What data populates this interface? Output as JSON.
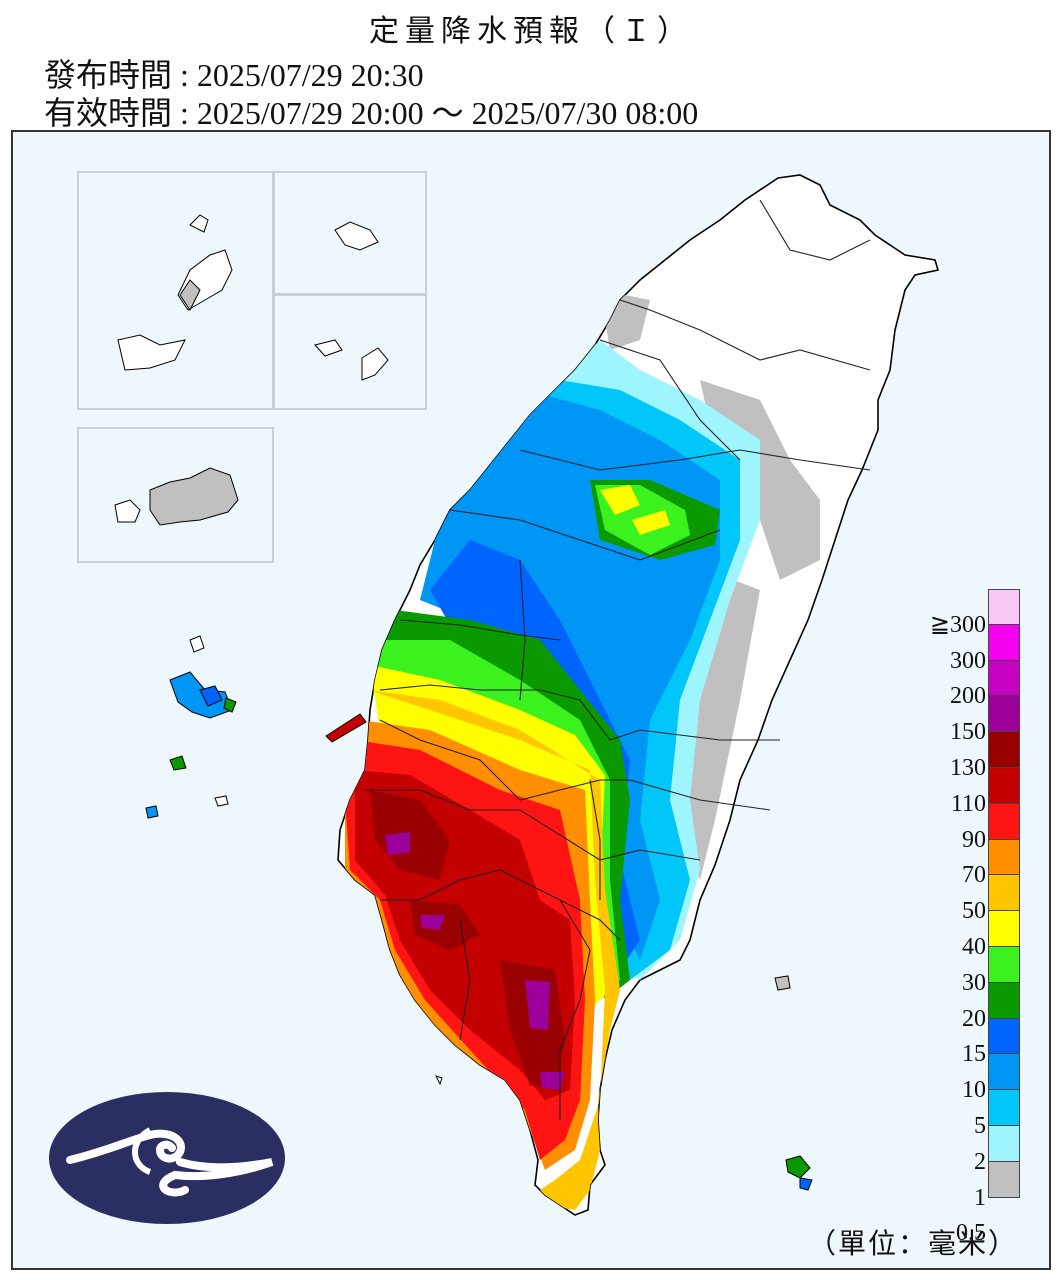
{
  "header": {
    "title": "定量降水預報（Ｉ）",
    "issued": "發布時間 : 2025/07/29 20:30",
    "valid": "有效時間 : 2025/07/29 20:00 ～ 2025/07/30 08:00"
  },
  "legend": {
    "unit": "（單位：毫米）",
    "levels": [
      {
        "label": "≧300",
        "color": "#fbc8f5"
      },
      {
        "label": "300",
        "color": "#f500f0"
      },
      {
        "label": "200",
        "color": "#c800c2"
      },
      {
        "label": "150",
        "color": "#9d009a"
      },
      {
        "label": "130",
        "color": "#9a0000"
      },
      {
        "label": "110",
        "color": "#c40000"
      },
      {
        "label": "90",
        "color": "#ff1414"
      },
      {
        "label": "70",
        "color": "#ff8e00"
      },
      {
        "label": "50",
        "color": "#ffc600"
      },
      {
        "label": "40",
        "color": "#ffff00"
      },
      {
        "label": "30",
        "color": "#3bf21f"
      },
      {
        "label": "20",
        "color": "#0a9a00"
      },
      {
        "label": "15",
        "color": "#0064ff"
      },
      {
        "label": "10",
        "color": "#0096f6"
      },
      {
        "label": "5",
        "color": "#00c6fa"
      },
      {
        "label": "2",
        "color": "#9ff5fd"
      },
      {
        "label": "1",
        "color": "#c0c0c0"
      },
      {
        "label": "0.5",
        "color": ""
      }
    ]
  },
  "logo": {
    "name": "central-weather-administration-logo",
    "color": "#2b2e62"
  }
}
